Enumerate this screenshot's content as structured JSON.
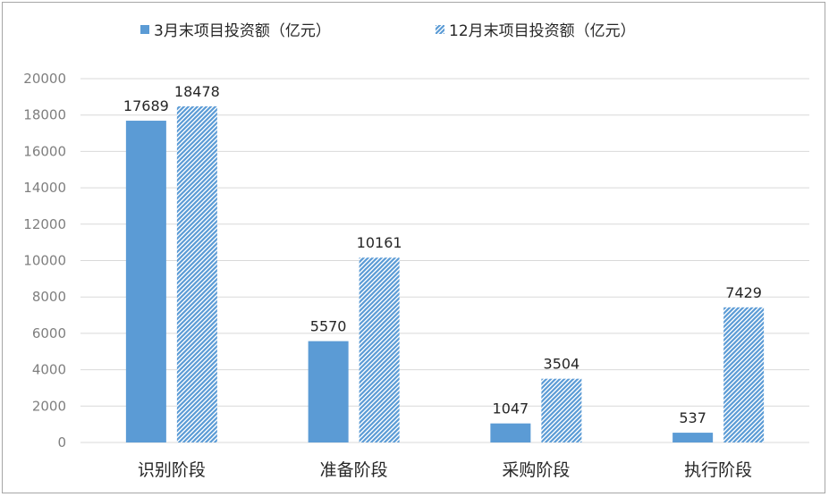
{
  "chart_data": {
    "type": "bar",
    "categories": [
      "识别阶段",
      "准备阶段",
      "采购阶段",
      "执行阶段"
    ],
    "series": [
      {
        "name": "3月末项目投资额（亿元）",
        "values": [
          17689,
          5570,
          1047,
          537
        ],
        "color": "#5b9bd5",
        "pattern": "solid"
      },
      {
        "name": "12月末项目投资额（亿元）",
        "values": [
          18478,
          10161,
          3504,
          7429
        ],
        "color": "#5b9bd5",
        "pattern": "diagonal-stripes"
      }
    ],
    "ylim": [
      0,
      20000
    ],
    "yticks": [
      0,
      2000,
      4000,
      6000,
      8000,
      10000,
      12000,
      14000,
      16000,
      18000,
      20000
    ],
    "grid": true,
    "legend": "top-center",
    "data_labels": true
  }
}
